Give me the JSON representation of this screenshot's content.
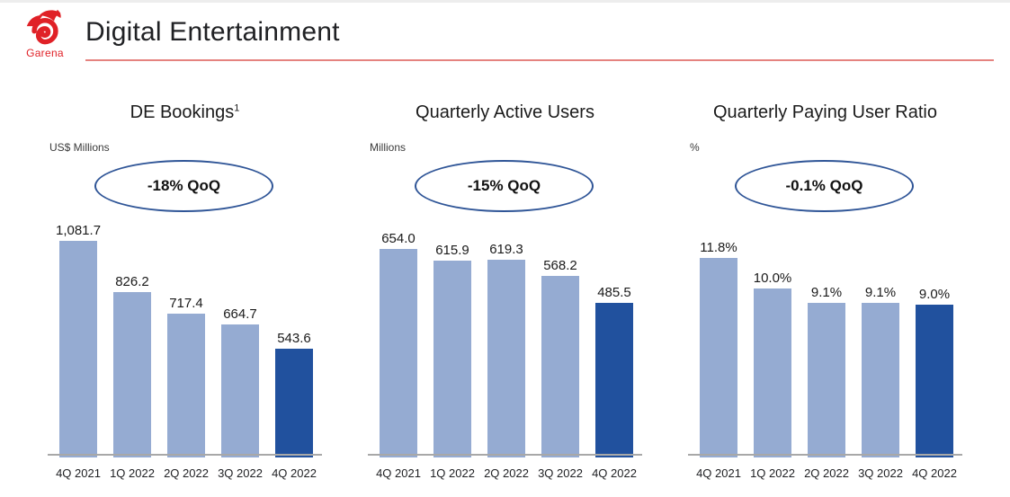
{
  "header": {
    "brand": "Garena",
    "title": "Digital Entertainment"
  },
  "colors": {
    "bar_default": "#95abd2",
    "bar_highlight": "#21519e",
    "oval_border": "#2f5597",
    "axis_line": "#a8a8a8",
    "brand_red": "#e02127",
    "rule_red": "#e5837f"
  },
  "chart_data": [
    {
      "type": "bar",
      "title": "DE Bookings",
      "title_superscript": "1",
      "ylabel": "US$ Millions",
      "annotation": "-18% QoQ",
      "categories": [
        "4Q 2021",
        "1Q 2022",
        "2Q 2022",
        "3Q 2022",
        "4Q 2022"
      ],
      "values": [
        1081.7,
        826.2,
        717.4,
        664.7,
        543.6
      ],
      "labels": [
        "1,081.7",
        "826.2",
        "717.4",
        "664.7",
        "543.6"
      ],
      "ylim": [
        0,
        1100
      ],
      "highlight_index": 4,
      "grid": false,
      "legend": "none"
    },
    {
      "type": "bar",
      "title": "Quarterly Active Users",
      "title_superscript": "",
      "ylabel": "Millions",
      "annotation": "-15% QoQ",
      "categories": [
        "4Q 2021",
        "1Q 2022",
        "2Q 2022",
        "3Q 2022",
        "4Q 2022"
      ],
      "values": [
        654.0,
        615.9,
        619.3,
        568.2,
        485.5
      ],
      "labels": [
        "654.0",
        "615.9",
        "619.3",
        "568.2",
        "485.5"
      ],
      "ylim": [
        0,
        690
      ],
      "highlight_index": 4,
      "grid": false,
      "legend": "none"
    },
    {
      "type": "bar",
      "title": "Quarterly Paying User Ratio",
      "title_superscript": "",
      "ylabel": "%",
      "annotation": "-0.1% QoQ",
      "categories": [
        "4Q 2021",
        "1Q 2022",
        "2Q 2022",
        "3Q 2022",
        "4Q 2022"
      ],
      "values": [
        11.8,
        10.0,
        9.1,
        9.1,
        9.0
      ],
      "labels": [
        "11.8%",
        "10.0%",
        "9.1%",
        "9.1%",
        "9.0%"
      ],
      "ylim": [
        0,
        13
      ],
      "highlight_index": 4,
      "grid": false,
      "legend": "none"
    }
  ]
}
